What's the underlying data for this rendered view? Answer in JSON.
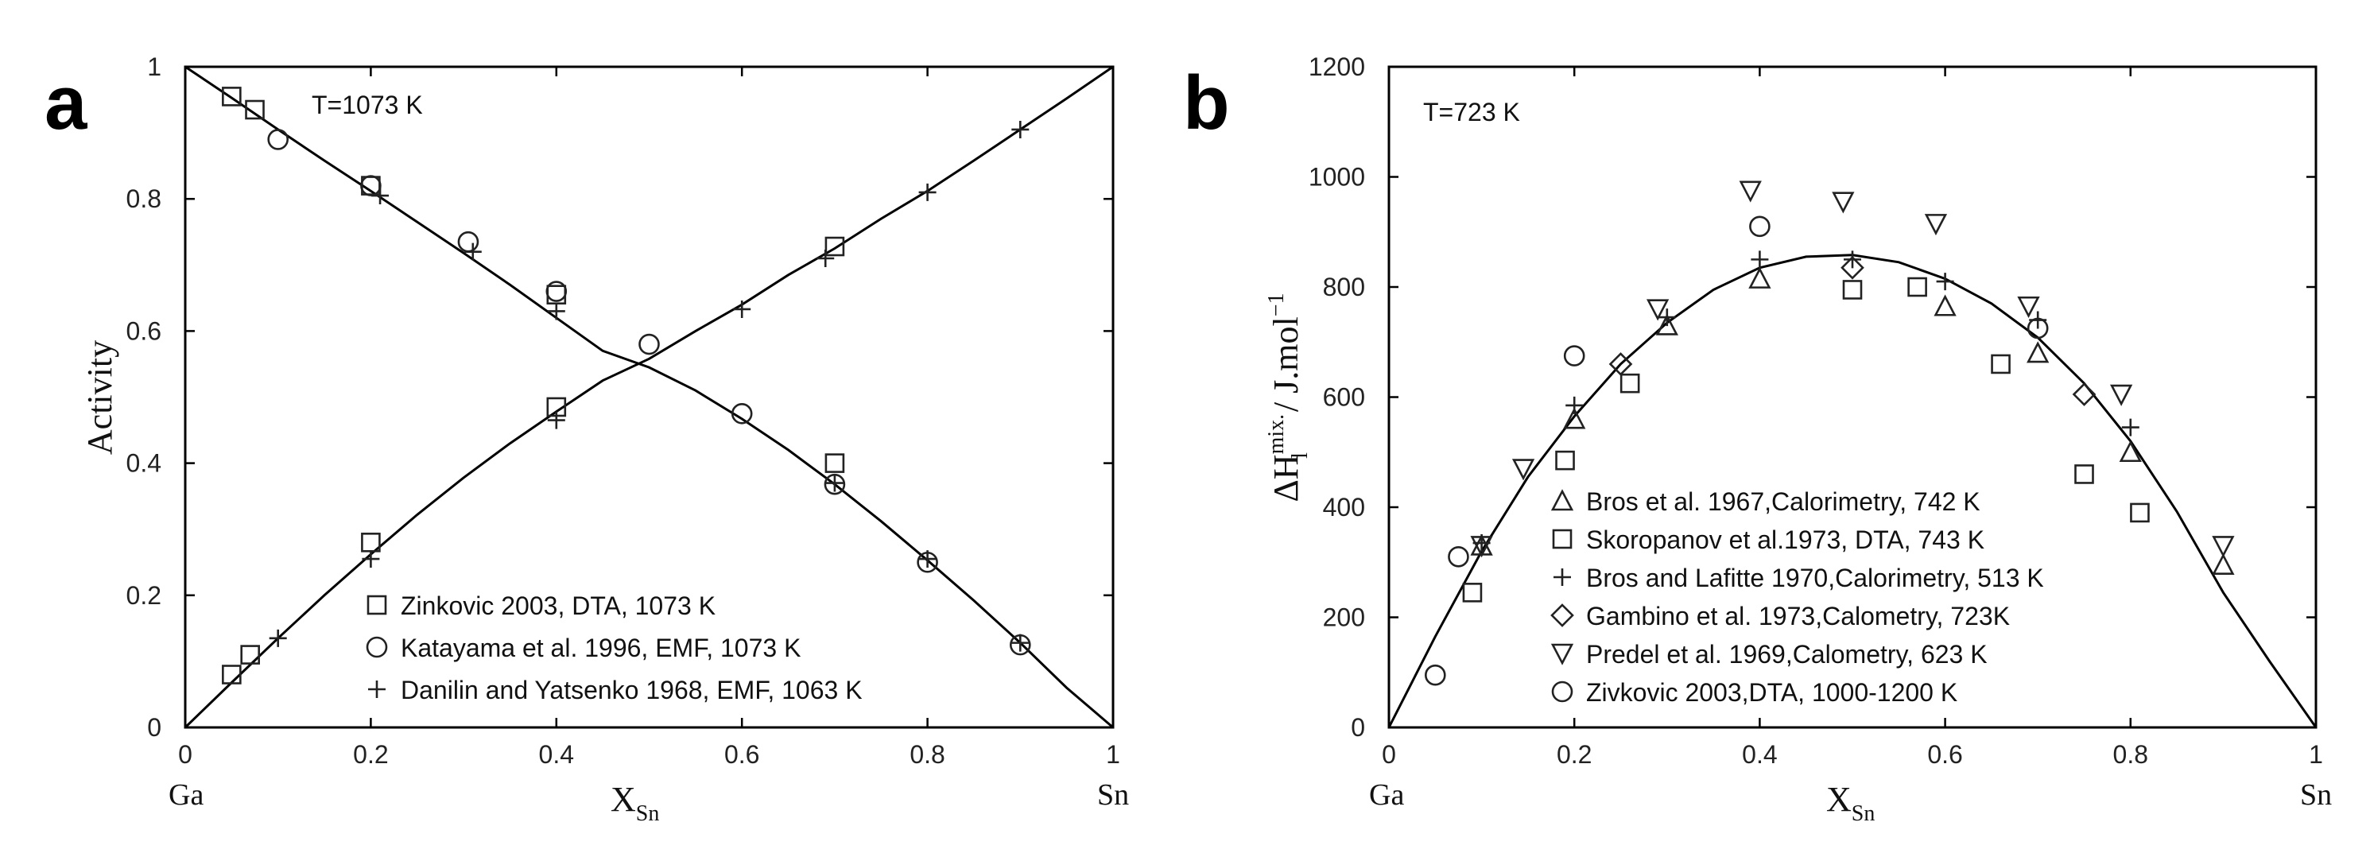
{
  "chart_data": [
    {
      "type": "scatter",
      "panel_label": "a",
      "annotation": "T=1073 K",
      "ylabel": "Activity",
      "xlabel": {
        "main": "X",
        "sub": "Sn"
      },
      "xlim": [
        0,
        1
      ],
      "ylim": [
        0,
        1
      ],
      "xticks": [
        "0",
        "0.2",
        "0.4",
        "0.6",
        "0.8",
        "1"
      ],
      "yticks": [
        "0",
        "0.2",
        "0.4",
        "0.6",
        "0.8",
        "1"
      ],
      "x_end_labels": {
        "left": "Ga",
        "right": "Sn"
      },
      "legend_position": "bottom-right",
      "legend": [
        {
          "label": "Zinkovic 2003, DTA, 1073 K",
          "marker": "square"
        },
        {
          "label": "Katayama et al. 1996, EMF, 1073 K",
          "marker": "circle"
        },
        {
          "label": "Danilin and Yatsenko 1968, EMF, 1063 K",
          "marker": "plus"
        }
      ],
      "curves": [
        {
          "x": [
            0,
            0.05,
            0.1,
            0.15,
            0.2,
            0.25,
            0.3,
            0.35,
            0.4,
            0.45,
            0.5,
            0.55,
            0.6,
            0.65,
            0.7,
            0.75,
            0.8,
            0.85,
            0.9,
            0.95,
            1
          ],
          "y": [
            1,
            0.953,
            0.905,
            0.858,
            0.812,
            0.765,
            0.718,
            0.67,
            0.62,
            0.57,
            0.545,
            0.51,
            0.467,
            0.42,
            0.368,
            0.312,
            0.253,
            0.192,
            0.128,
            0.06,
            0
          ]
        },
        {
          "x": [
            0,
            0.05,
            0.1,
            0.15,
            0.2,
            0.25,
            0.3,
            0.35,
            0.4,
            0.45,
            0.5,
            0.55,
            0.6,
            0.65,
            0.7,
            0.75,
            0.8,
            0.85,
            0.9,
            0.95,
            1
          ],
          "y": [
            0,
            0.068,
            0.135,
            0.2,
            0.262,
            0.322,
            0.378,
            0.43,
            0.478,
            0.525,
            0.558,
            0.6,
            0.64,
            0.685,
            0.725,
            0.77,
            0.812,
            0.858,
            0.905,
            0.952,
            1
          ]
        }
      ],
      "series": [
        {
          "marker": "square",
          "points": [
            [
              0.05,
              0.955
            ],
            [
              0.075,
              0.935
            ],
            [
              0.2,
              0.82
            ],
            [
              0.4,
              0.655
            ],
            [
              0.05,
              0.08
            ],
            [
              0.07,
              0.11
            ],
            [
              0.2,
              0.28
            ],
            [
              0.4,
              0.485
            ],
            [
              0.7,
              0.4
            ],
            [
              0.7,
              0.728
            ]
          ]
        },
        {
          "marker": "circle",
          "points": [
            [
              0.1,
              0.89
            ],
            [
              0.2,
              0.82
            ],
            [
              0.305,
              0.735
            ],
            [
              0.4,
              0.66
            ],
            [
              0.5,
              0.58
            ],
            [
              0.6,
              0.475
            ],
            [
              0.7,
              0.368
            ],
            [
              0.8,
              0.25
            ],
            [
              0.9,
              0.125
            ]
          ]
        },
        {
          "marker": "plus",
          "points": [
            [
              0.21,
              0.805
            ],
            [
              0.31,
              0.72
            ],
            [
              0.4,
              0.63
            ],
            [
              0.1,
              0.135
            ],
            [
              0.2,
              0.255
            ],
            [
              0.4,
              0.465
            ],
            [
              0.6,
              0.633
            ],
            [
              0.69,
              0.71
            ],
            [
              0.8,
              0.81
            ],
            [
              0.9,
              0.905
            ],
            [
              0.7,
              0.37
            ],
            [
              0.8,
              0.255
            ],
            [
              0.9,
              0.128
            ]
          ]
        }
      ]
    },
    {
      "type": "scatter",
      "panel_label": "b",
      "annotation": "T=723 K",
      "ylabel": {
        "prefix": "ΔH",
        "sup": "mix.",
        "sub": "l",
        "unit": " / J.mol",
        "unit_sup": "−1"
      },
      "xlabel": {
        "main": "X",
        "sub": "Sn"
      },
      "xlim": [
        0,
        1
      ],
      "ylim": [
        0,
        1200
      ],
      "xticks": [
        "0",
        "0.2",
        "0.4",
        "0.6",
        "0.8",
        "1"
      ],
      "yticks": [
        "0",
        "200",
        "400",
        "600",
        "800",
        "1000",
        "1200"
      ],
      "x_end_labels": {
        "left": "Ga",
        "right": "Sn"
      },
      "legend_position": "bottom-center",
      "legend": [
        {
          "label": "Bros et al. 1967,Calorimetry, 742 K",
          "marker": "triangle-up"
        },
        {
          "label": "Skoropanov et al.1973, DTA, 743 K",
          "marker": "square"
        },
        {
          "label": "Bros and Lafitte 1970,Calorimetry, 513 K",
          "marker": "plus"
        },
        {
          "label": "Gambino et al. 1973,Calometry, 723K",
          "marker": "diamond"
        },
        {
          "label": "Predel et al. 1969,Calometry, 623 K",
          "marker": "triangle-down"
        },
        {
          "label": "Zivkovic 2003,DTA, 1000-1200 K",
          "marker": "circle"
        }
      ],
      "curves": [
        {
          "x": [
            0,
            0.05,
            0.1,
            0.15,
            0.2,
            0.25,
            0.3,
            0.35,
            0.4,
            0.45,
            0.5,
            0.55,
            0.6,
            0.65,
            0.7,
            0.75,
            0.8,
            0.85,
            0.9,
            0.95,
            1
          ],
          "y": [
            0,
            165,
            320,
            455,
            565,
            660,
            735,
            795,
            835,
            855,
            858,
            845,
            815,
            770,
            708,
            625,
            520,
            392,
            245,
            120,
            0
          ]
        }
      ],
      "series": [
        {
          "marker": "triangle-up",
          "points": [
            [
              0.1,
              330
            ],
            [
              0.2,
              560
            ],
            [
              0.3,
              730
            ],
            [
              0.4,
              815
            ],
            [
              0.6,
              765
            ],
            [
              0.7,
              680
            ],
            [
              0.8,
              500
            ],
            [
              0.9,
              295
            ]
          ]
        },
        {
          "marker": "square",
          "points": [
            [
              0.09,
              245
            ],
            [
              0.19,
              485
            ],
            [
              0.26,
              625
            ],
            [
              0.5,
              795
            ],
            [
              0.57,
              800
            ],
            [
              0.66,
              660
            ],
            [
              0.75,
              460
            ],
            [
              0.81,
              390
            ]
          ]
        },
        {
          "marker": "plus",
          "points": [
            [
              0.1,
              335
            ],
            [
              0.2,
              585
            ],
            [
              0.3,
              745
            ],
            [
              0.4,
              850
            ],
            [
              0.5,
              850
            ],
            [
              0.6,
              810
            ],
            [
              0.7,
              740
            ],
            [
              0.8,
              545
            ]
          ]
        },
        {
          "marker": "diamond",
          "points": [
            [
              0.25,
              660
            ],
            [
              0.5,
              835
            ],
            [
              0.75,
              605
            ]
          ]
        },
        {
          "marker": "triangle-down",
          "points": [
            [
              0.1,
              330
            ],
            [
              0.145,
              470
            ],
            [
              0.29,
              760
            ],
            [
              0.39,
              975
            ],
            [
              0.49,
              955
            ],
            [
              0.59,
              915
            ],
            [
              0.69,
              765
            ],
            [
              0.79,
              605
            ],
            [
              0.9,
              330
            ]
          ]
        },
        {
          "marker": "circle",
          "points": [
            [
              0.05,
              95
            ],
            [
              0.075,
              310
            ],
            [
              0.2,
              675
            ],
            [
              0.4,
              910
            ],
            [
              0.7,
              725
            ]
          ]
        }
      ]
    }
  ]
}
